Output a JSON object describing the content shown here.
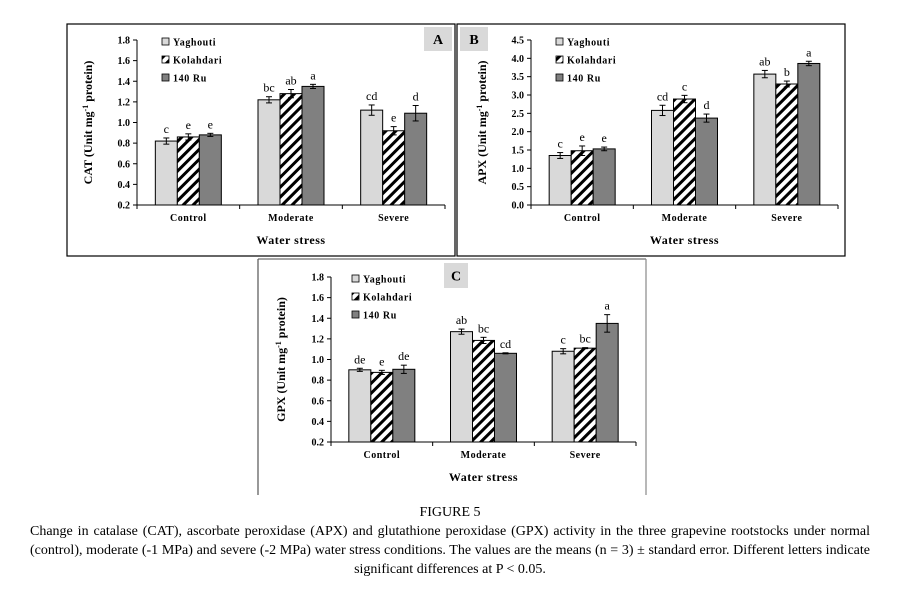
{
  "figure": {
    "label": "FIGURE 5",
    "caption": "Change in catalase (CAT), ascorbate peroxidase (APX) and glutathione peroxidase (GPX) activity in the three grapevine rootstocks under normal (control), moderate (-1 MPa) and severe (-2 MPa) water stress conditions. The values are the means (n = 3) ± standard error. Different letters indicate significant differences at P < 0.05."
  },
  "legend": [
    {
      "name": "Yaghouti",
      "fill": "#d9d9d9",
      "pattern": "solid"
    },
    {
      "name": "Kolahdari",
      "fill": "#ffffff",
      "pattern": "diagonal-stripes"
    },
    {
      "name": "140 Ru",
      "fill": "#808080",
      "pattern": "solid"
    }
  ],
  "chart_data": [
    {
      "panel": "A",
      "type": "bar",
      "title": "",
      "xlabel": "Water stress",
      "ylabel": "CAT (Unit mg-1 protein)",
      "ylabel_parts": [
        "CAT (Unit mg",
        "-1",
        " protein)"
      ],
      "categories": [
        "Control",
        "Moderate",
        "Severe"
      ],
      "ylim": [
        0.2,
        1.8
      ],
      "yticks": [
        "0.2",
        "0.4",
        "0.6",
        "0.8",
        "1.0",
        "1.2",
        "1.4",
        "1.6",
        "1.8"
      ],
      "grid": false,
      "legend_position": "top-left",
      "series": [
        {
          "name": "Yaghouti",
          "values": [
            0.82,
            1.22,
            1.12
          ],
          "errors": [
            0.03,
            0.03,
            0.05
          ],
          "letters": [
            "c",
            "bc",
            "cd"
          ]
        },
        {
          "name": "Kolahdari",
          "values": [
            0.86,
            1.28,
            0.92
          ],
          "errors": [
            0.03,
            0.04,
            0.04
          ],
          "letters": [
            "e",
            "ab",
            "e"
          ]
        },
        {
          "name": "140 Ru",
          "values": [
            0.88,
            1.35,
            1.09
          ],
          "errors": [
            0.015,
            0.02,
            0.075
          ],
          "letters": [
            "e",
            "a",
            "d"
          ]
        }
      ]
    },
    {
      "panel": "B",
      "type": "bar",
      "title": "",
      "xlabel": "Water stress",
      "ylabel": "APX (Unit mg-1 protein)",
      "ylabel_parts": [
        "APX (Unit mg",
        "-1",
        " protein)"
      ],
      "categories": [
        "Control",
        "Moderate",
        "Severe"
      ],
      "ylim": [
        0.0,
        4.5
      ],
      "yticks": [
        "0.0",
        "0.5",
        "1.0",
        "1.5",
        "2.0",
        "2.5",
        "3.0",
        "3.5",
        "4.0",
        "4.5"
      ],
      "grid": false,
      "legend_position": "top-left",
      "series": [
        {
          "name": "Yaghouti",
          "values": [
            1.35,
            2.58,
            3.57
          ],
          "errors": [
            0.08,
            0.14,
            0.1
          ],
          "letters": [
            "c",
            "cd",
            "ab"
          ]
        },
        {
          "name": "Kolahdari",
          "values": [
            1.48,
            2.89,
            3.3
          ],
          "errors": [
            0.13,
            0.1,
            0.08
          ],
          "letters": [
            "e",
            "c",
            "b"
          ]
        },
        {
          "name": "140 Ru",
          "values": [
            1.53,
            2.37,
            3.86
          ],
          "errors": [
            0.05,
            0.11,
            0.06
          ],
          "letters": [
            "e",
            "d",
            "a"
          ]
        }
      ]
    },
    {
      "panel": "C",
      "type": "bar",
      "title": "",
      "xlabel": "Water stress",
      "ylabel": "GPX (Unit mg-1 protein)",
      "ylabel_parts": [
        "GPX (Unit mg",
        "-1",
        " protein)"
      ],
      "categories": [
        "Control",
        "Moderate",
        "Severe"
      ],
      "ylim": [
        0.2,
        1.8
      ],
      "yticks": [
        "0.2",
        "0.4",
        "0.6",
        "0.8",
        "1.0",
        "1.2",
        "1.4",
        "1.6",
        "1.8"
      ],
      "grid": false,
      "legend_position": "top-left",
      "series": [
        {
          "name": "Yaghouti",
          "values": [
            0.9,
            1.27,
            1.08
          ],
          "errors": [
            0.015,
            0.025,
            0.025
          ],
          "letters": [
            "de",
            "ab",
            "c"
          ]
        },
        {
          "name": "Kolahdari",
          "values": [
            0.875,
            1.185,
            1.11
          ],
          "errors": [
            0.02,
            0.03,
            0.005
          ],
          "letters": [
            "e",
            "bc",
            "bc"
          ]
        },
        {
          "name": "140 Ru",
          "values": [
            0.905,
            1.06,
            1.35
          ],
          "errors": [
            0.04,
            0.005,
            0.085
          ],
          "letters": [
            "de",
            "cd",
            "a"
          ]
        }
      ]
    }
  ]
}
